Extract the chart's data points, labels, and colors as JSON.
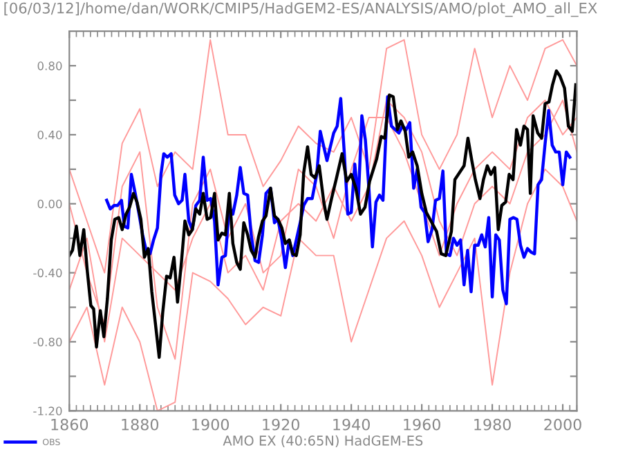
{
  "chart_data": {
    "type": "line",
    "title": "[06/03/12]/home/dan/WORK/CMIP5/HadGEM2-ES/ANALYSIS/AMO/plot_AMO_all_EX",
    "xlabel": "AMO EX (40:65N) HadGEM-ES",
    "xlim": [
      1860,
      2004
    ],
    "xticks": [
      1860,
      1880,
      1900,
      1920,
      1940,
      1960,
      1980,
      2000
    ],
    "ylim": [
      -1.2,
      1.0
    ],
    "yticks": [
      {
        "value": -1.2,
        "label": "-1.20"
      },
      {
        "value": -1.0,
        "label": null
      },
      {
        "value": -0.8,
        "label": "-0.80"
      },
      {
        "value": -0.6,
        "label": null
      },
      {
        "value": -0.4,
        "label": "-0.40"
      },
      {
        "value": -0.2,
        "label": null
      },
      {
        "value": 0.0,
        "label": "0.00"
      },
      {
        "value": 0.2,
        "label": null
      },
      {
        "value": 0.4,
        "label": "0.40"
      },
      {
        "value": 0.6,
        "label": null
      },
      {
        "value": 0.8,
        "label": "0.80"
      }
    ],
    "grid": false,
    "legend": "bottom left",
    "line_style": "solid",
    "marker": "none",
    "series": [
      {
        "color": "#ff9999",
        "x": [
          1860,
          1865,
          1870,
          1875,
          1880,
          1885,
          1890,
          1895,
          1900,
          1905,
          1910,
          1915,
          1920,
          1925,
          1930,
          1935,
          1940,
          1945,
          1950,
          1955,
          1960,
          1965,
          1970,
          1975,
          1980,
          1985,
          1990,
          1995,
          2000,
          2004
        ],
        "values": [
          0.2,
          -0.1,
          -0.4,
          0.35,
          0.55,
          0.1,
          0.3,
          0.2,
          0.95,
          0.4,
          0.4,
          0.1,
          0.25,
          0.45,
          0.35,
          0.3,
          0.5,
          0.2,
          0.9,
          0.95,
          0.4,
          0.2,
          0.4,
          0.9,
          0.5,
          0.8,
          0.6,
          0.9,
          0.95,
          0.8
        ]
      },
      {
        "color": "#ff9999",
        "x": [
          1860,
          1865,
          1870,
          1875,
          1880,
          1885,
          1890,
          1895,
          1900,
          1905,
          1910,
          1915,
          1920,
          1925,
          1930,
          1935,
          1940,
          1945,
          1950,
          1955,
          1960,
          1965,
          1970,
          1975,
          1980,
          1985,
          1990,
          1995,
          2000,
          2004
        ],
        "values": [
          -0.8,
          -0.6,
          -1.05,
          -0.6,
          -0.8,
          -1.2,
          -1.15,
          -0.4,
          -0.45,
          -0.55,
          -0.7,
          -0.6,
          -0.65,
          -0.2,
          -0.3,
          -0.3,
          -0.8,
          -0.5,
          -0.2,
          -0.1,
          -0.3,
          -0.6,
          -0.4,
          -0.2,
          -1.05,
          -0.4,
          0.0,
          0.2,
          0.1,
          -0.1
        ]
      },
      {
        "color": "#ff9999",
        "x": [
          1860,
          1865,
          1870,
          1875,
          1880,
          1885,
          1890,
          1895,
          1900,
          1905,
          1910,
          1915,
          1920,
          1925,
          1930,
          1935,
          1940,
          1945,
          1950,
          1955,
          1960,
          1965,
          1970,
          1975,
          1980,
          1985,
          1990,
          1995,
          2000,
          2004
        ],
        "values": [
          0.0,
          -0.4,
          -0.7,
          0.1,
          0.3,
          -0.6,
          -0.9,
          0.0,
          0.2,
          -0.2,
          0.0,
          -0.4,
          -0.3,
          0.2,
          0.1,
          -0.2,
          0.2,
          0.5,
          0.5,
          0.3,
          0.0,
          -0.3,
          0.0,
          0.2,
          0.3,
          0.2,
          0.5,
          0.6,
          0.4,
          0.5
        ]
      },
      {
        "color": "#ff9999",
        "x": [
          1860,
          1865,
          1870,
          1875,
          1880,
          1885,
          1890,
          1895,
          1900,
          1905,
          1910,
          1915,
          1920,
          1925,
          1930,
          1935,
          1940,
          1945,
          1950,
          1955,
          1960,
          1965,
          1970,
          1975,
          1980,
          1985,
          1990,
          1995,
          2000,
          2004
        ],
        "values": [
          -0.5,
          -0.2,
          -0.8,
          -0.2,
          -0.3,
          -0.4,
          -0.5,
          -0.2,
          0.0,
          -0.4,
          -0.3,
          -0.5,
          -0.1,
          0.0,
          -0.1,
          0.1,
          -0.1,
          0.1,
          0.6,
          0.5,
          0.3,
          -0.1,
          -0.3,
          0.0,
          0.1,
          0.0,
          0.3,
          0.4,
          0.6,
          0.3
        ]
      },
      {
        "name": "OBS",
        "color": "#0000ff",
        "x": [
          1870.6,
          1871.6,
          1872.7,
          1873.7,
          1874.8,
          1875.6,
          1876.6,
          1877.6,
          1878.7,
          1879.7,
          1880.8,
          1881.8,
          1882.9,
          1883.9,
          1885.0,
          1886.0,
          1886.8,
          1887.8,
          1888.9,
          1889.9,
          1891.0,
          1892.0,
          1892.8,
          1893.9,
          1894.9,
          1895.9,
          1897.0,
          1898.0,
          1899.1,
          1900.1,
          1901.2,
          1902.2,
          1903.3,
          1904.3,
          1905.4,
          1906.4,
          1907.5,
          1908.5,
          1909.5,
          1910.6,
          1911.6,
          1912.7,
          1913.7,
          1914.8,
          1915.8,
          1917.1,
          1918.2,
          1919.2,
          1920.3,
          1921.3,
          1922.4,
          1923.4,
          1924.4,
          1925.5,
          1926.5,
          1927.6,
          1928.9,
          1930.2,
          1931.2,
          1933.1,
          1935,
          1936,
          1937,
          1938,
          1939,
          1940,
          1941,
          1942,
          1943,
          1944,
          1945,
          1946,
          1947,
          1948,
          1949,
          1950.3,
          1951.4,
          1952.4,
          1953.5,
          1954.5,
          1955.6,
          1956.6,
          1957.7,
          1958.7,
          1959.8,
          1960.8,
          1961.8,
          1962.9,
          1963.9,
          1965.0,
          1966.0,
          1967.0,
          1968.0,
          1969.0,
          1970.0,
          1971.0,
          1972.0,
          1973.0,
          1974.0,
          1975.0,
          1976.0,
          1977.0,
          1978.0,
          1979.0,
          1980.0,
          1981.0,
          1982.0,
          1983.0,
          1984.0,
          1985.0,
          1986.0,
          1987.0,
          1988.0,
          1989.0,
          1990.0,
          1991.0,
          1992.0,
          1993.0,
          1994.0,
          1995.0,
          1996.0,
          1997.0,
          1998.0,
          1999.0,
          2000.0,
          2001.0,
          2002.0
        ],
        "values": [
          0.02,
          -0.03,
          -0.01,
          -0.01,
          0.02,
          -0.13,
          -0.14,
          0.17,
          0.06,
          -0.05,
          -0.18,
          -0.27,
          -0.29,
          -0.21,
          -0.14,
          0.17,
          0.29,
          0.27,
          0.29,
          0.05,
          0.0,
          0.02,
          0.17,
          -0.1,
          -0.15,
          -0.01,
          0.02,
          0.27,
          0.02,
          0.03,
          -0.1,
          -0.47,
          -0.31,
          -0.3,
          -0.02,
          -0.06,
          0.05,
          0.21,
          0.06,
          0.05,
          -0.18,
          -0.33,
          -0.34,
          -0.18,
          0.06,
          0.09,
          -0.11,
          -0.09,
          -0.21,
          -0.37,
          -0.21,
          -0.3,
          -0.21,
          -0.11,
          -0.01,
          0.03,
          0.03,
          0.17,
          0.42,
          0.25,
          0.41,
          0.45,
          0.61,
          0.3,
          -0.06,
          -0.05,
          0.23,
          0.02,
          0.51,
          0.37,
          0.09,
          -0.25,
          0.01,
          0.05,
          0.02,
          0.62,
          0.45,
          0.43,
          0.41,
          0.45,
          0.43,
          0.47,
          0.09,
          0.2,
          -0.02,
          -0.05,
          -0.22,
          -0.15,
          0.02,
          0.03,
          0.19,
          -0.29,
          -0.3,
          -0.2,
          -0.24,
          -0.21,
          -0.47,
          -0.27,
          -0.51,
          -0.24,
          -0.24,
          -0.18,
          -0.25,
          -0.08,
          -0.54,
          -0.18,
          -0.21,
          -0.5,
          -0.58,
          -0.09,
          -0.08,
          -0.09,
          -0.24,
          -0.31,
          -0.26,
          -0.28,
          -0.29,
          0.11,
          0.14,
          0.35,
          0.54,
          0.34,
          0.3,
          0.3,
          0.11,
          0.3,
          0.27
        ]
      },
      {
        "color": "#000000",
        "x": [
          1860,
          1860.9,
          1862.0,
          1863.0,
          1864.1,
          1865.1,
          1866.1,
          1866.9,
          1867.7,
          1868.8,
          1869.8,
          1870.8,
          1871.9,
          1872.9,
          1874.0,
          1875.0,
          1876.1,
          1877.1,
          1878.2,
          1879.2,
          1880.3,
          1881.3,
          1882.4,
          1883.4,
          1884.4,
          1885.5,
          1886.5,
          1887.6,
          1888.6,
          1889.7,
          1890.7,
          1891.8,
          1892.8,
          1893.9,
          1894.9,
          1895.9,
          1897.0,
          1898.0,
          1899.1,
          1900.1,
          1901.2,
          1902.2,
          1903.3,
          1904.3,
          1905.4,
          1906.4,
          1907.5,
          1908.5,
          1909.5,
          1910.6,
          1911.6,
          1912.7,
          1913.7,
          1914.8,
          1915.8,
          1917.1,
          1918.2,
          1919.2,
          1920.3,
          1921.3,
          1922.4,
          1923.4,
          1924.4,
          1925.5,
          1926.5,
          1927.6,
          1928.6,
          1929.7,
          1930.9,
          1932.2,
          1933.1,
          1934.4,
          1935.7,
          1937.4,
          1938.7,
          1940.0,
          1941.3,
          1942.6,
          1943.9,
          1945.2,
          1947.2,
          1948.5,
          1949.5,
          1950.8,
          1951.9,
          1953.1,
          1954.1,
          1955.3,
          1956.3,
          1957.4,
          1958.7,
          1960.0,
          1961.3,
          1962.6,
          1964.2,
          1965.5,
          1966.8,
          1968.4,
          1969.4,
          1970.7,
          1972.0,
          1973.1,
          1974.2,
          1975.2,
          1976.5,
          1977.5,
          1978.6,
          1979.6,
          1980.7,
          1981.7,
          1982.7,
          1983.8,
          1984.8,
          1985.9,
          1986.9,
          1988.0,
          1989.0,
          1990.0,
          1990.8,
          1991.6,
          1992.9,
          1994.0,
          1995.0,
          1996.1,
          1997.1,
          1998.2,
          1999.2,
          2000.5,
          2001.6,
          2002.7,
          2003.7
        ],
        "values": [
          -0.3,
          -0.27,
          -0.13,
          -0.3,
          -0.15,
          -0.39,
          -0.59,
          -0.61,
          -0.83,
          -0.62,
          -0.77,
          -0.55,
          -0.21,
          -0.09,
          -0.08,
          -0.15,
          -0.06,
          -0.02,
          0.06,
          0.01,
          -0.09,
          -0.31,
          -0.26,
          -0.51,
          -0.69,
          -0.89,
          -0.63,
          -0.42,
          -0.43,
          -0.31,
          -0.57,
          -0.34,
          -0.1,
          -0.18,
          -0.15,
          -0.03,
          -0.06,
          0.06,
          -0.09,
          -0.08,
          0.06,
          -0.21,
          -0.17,
          -0.18,
          0.06,
          -0.23,
          -0.34,
          -0.38,
          -0.11,
          -0.18,
          -0.27,
          -0.31,
          -0.19,
          -0.1,
          -0.07,
          0.09,
          -0.07,
          -0.09,
          -0.14,
          -0.23,
          -0.21,
          -0.29,
          -0.3,
          -0.18,
          0.18,
          0.33,
          0.17,
          0.15,
          0.22,
          0.01,
          -0.09,
          0.03,
          0.14,
          0.29,
          0.13,
          0.17,
          0.09,
          -0.06,
          -0.02,
          0.13,
          0.26,
          0.39,
          0.38,
          0.63,
          0.62,
          0.43,
          0.48,
          0.42,
          0.27,
          0.3,
          0.22,
          0.06,
          -0.05,
          -0.1,
          -0.16,
          -0.29,
          -0.3,
          -0.16,
          0.14,
          0.18,
          0.22,
          0.38,
          0.25,
          0.14,
          0.03,
          0.14,
          0.22,
          0.17,
          0.21,
          -0.15,
          -0.01,
          0.01,
          0.17,
          0.14,
          0.43,
          0.34,
          0.45,
          0.43,
          0.06,
          0.51,
          0.41,
          0.38,
          0.58,
          0.59,
          0.69,
          0.77,
          0.74,
          0.67,
          0.45,
          0.42,
          0.69
        ]
      }
    ]
  }
}
